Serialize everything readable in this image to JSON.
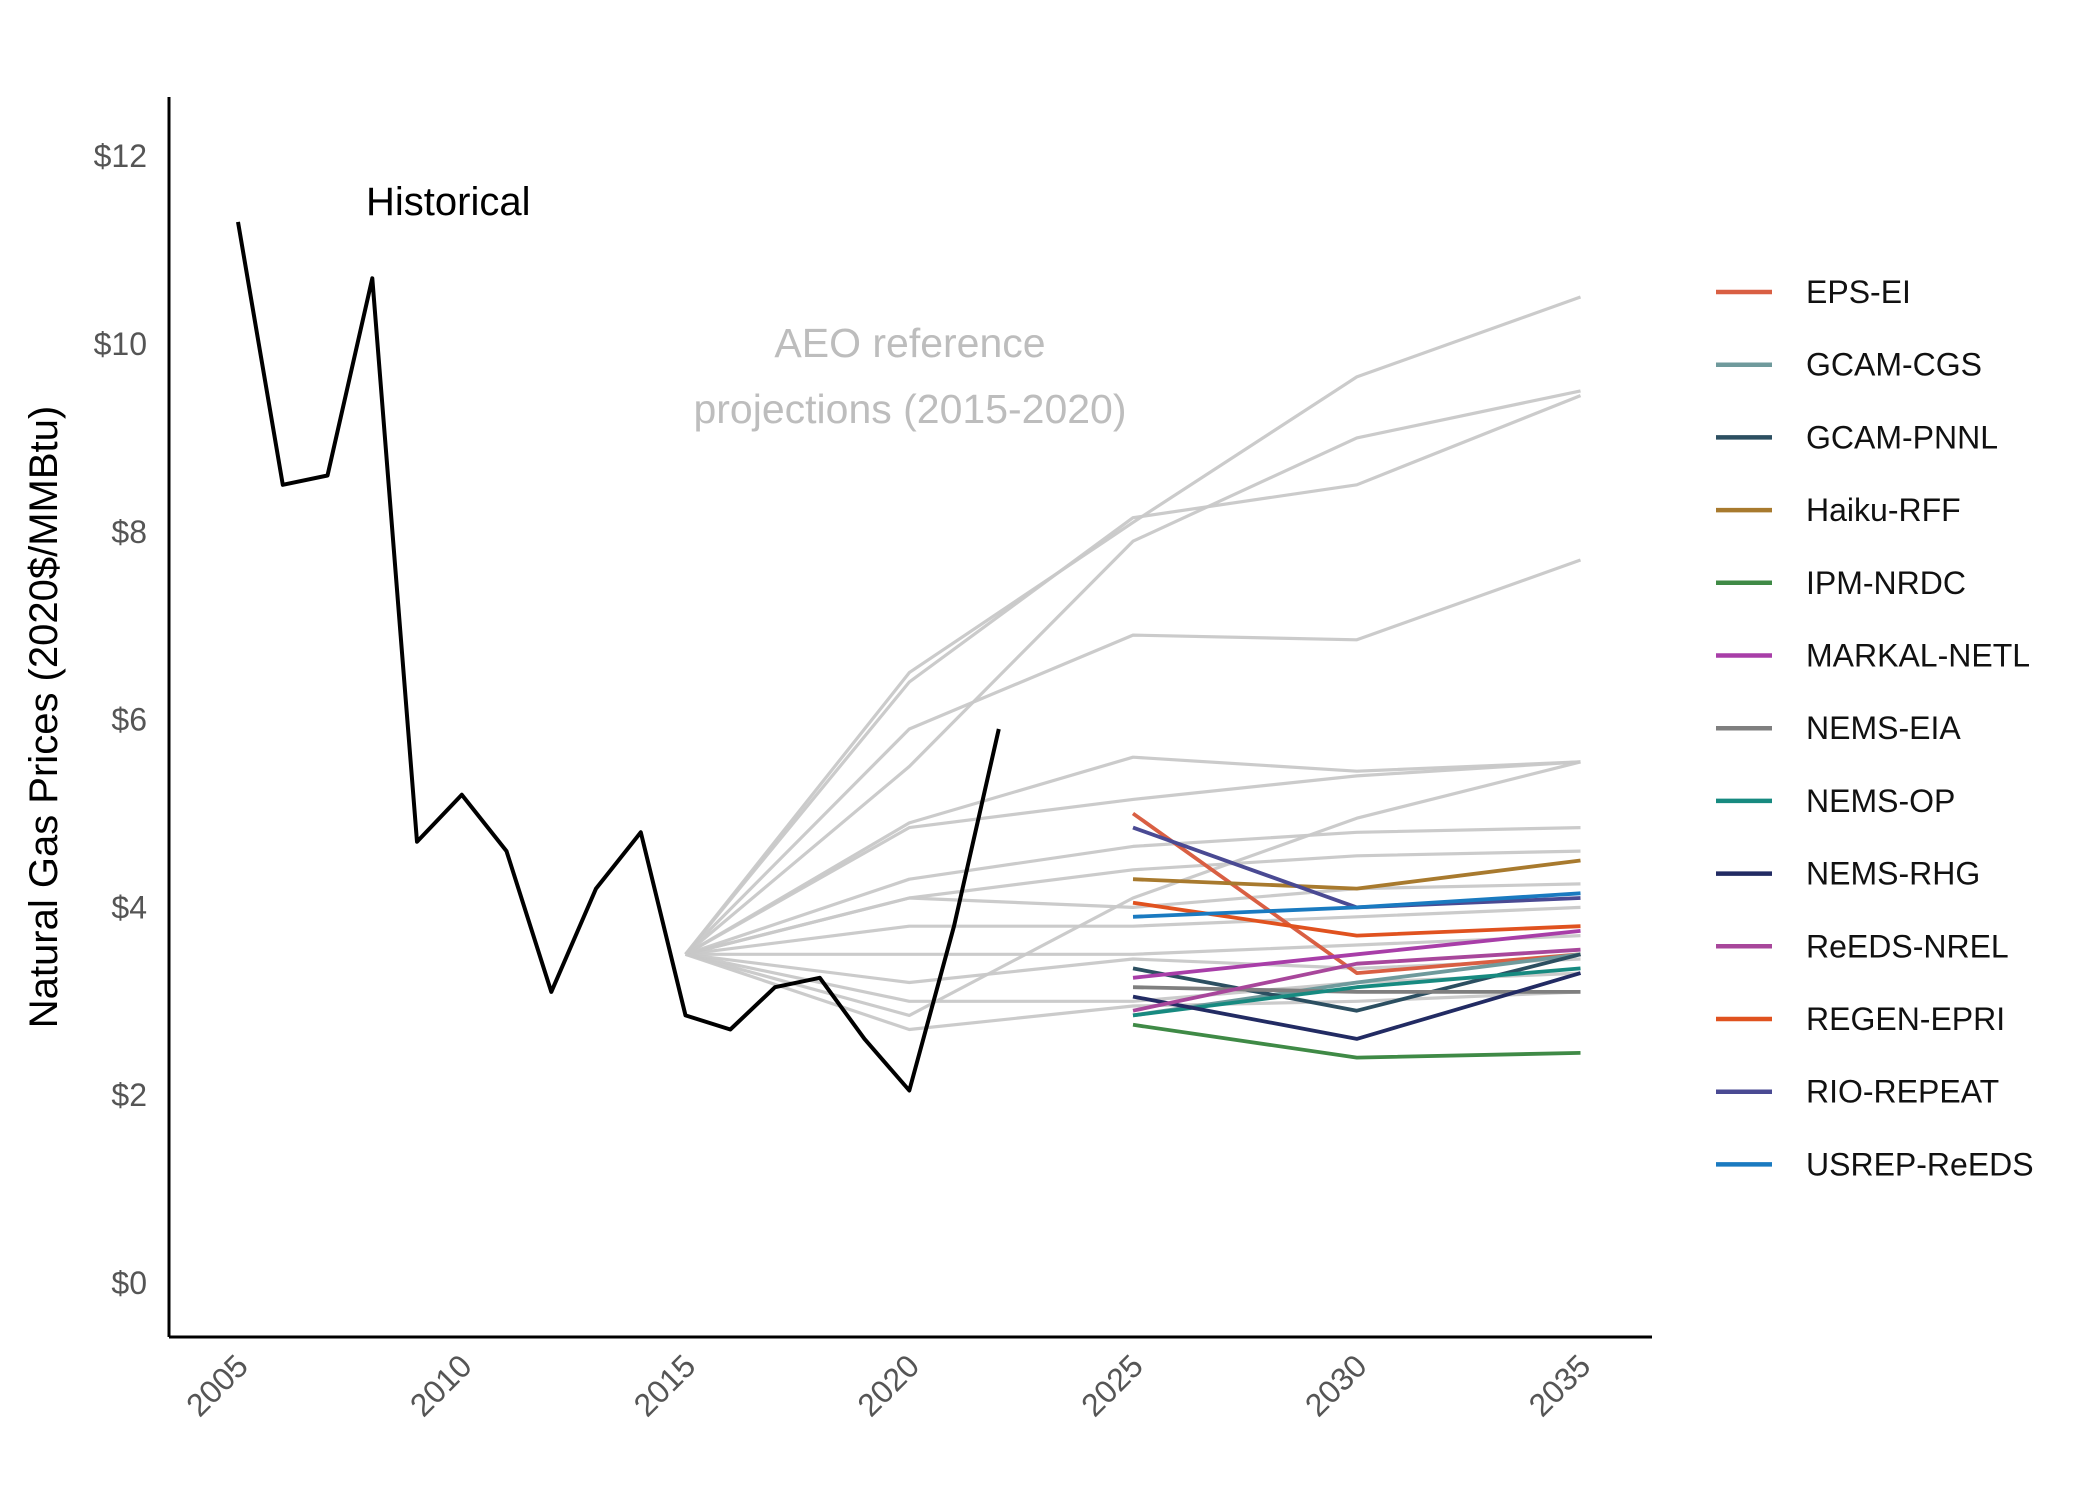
{
  "chart_data": {
    "type": "line",
    "title": "",
    "xlabel": "",
    "ylabel": "Natural Gas Prices (2020$/MMBtu)",
    "xlim": [
      2003.5,
      2036.5
    ],
    "ylim": [
      -0.6,
      12.6
    ],
    "x_ticks": [
      2005,
      2010,
      2015,
      2020,
      2025,
      2030,
      2035
    ],
    "x_tick_labels": [
      "2005",
      "2010",
      "2015",
      "2020",
      "2025",
      "2030",
      "2035"
    ],
    "y_ticks": [
      0,
      2,
      4,
      6,
      8,
      10,
      12
    ],
    "y_tick_labels": [
      "$0",
      "$2",
      "$4",
      "$6",
      "$8",
      "$10",
      "$12"
    ],
    "annotations": {
      "historical": "Historical",
      "aeo_line1": "AEO reference",
      "aeo_line2": "projections (2015-2020)"
    },
    "legend_position": "right",
    "historical": {
      "color": "#000000",
      "x": [
        2005,
        2006,
        2007,
        2008,
        2009,
        2010,
        2011,
        2012,
        2013,
        2014,
        2015,
        2016,
        2017,
        2018,
        2019,
        2020,
        2021,
        2022
      ],
      "values": [
        11.3,
        8.5,
        8.6,
        10.7,
        4.7,
        5.2,
        4.6,
        3.1,
        4.2,
        4.8,
        2.85,
        2.7,
        3.15,
        3.25,
        2.6,
        2.05,
        3.8,
        5.9
      ]
    },
    "aeo_projections": {
      "color": "#c8c8c8",
      "x": [
        2015,
        2020,
        2025,
        2030,
        2035
      ],
      "series": [
        [
          3.5,
          6.5,
          8.1,
          9.65,
          10.5
        ],
        [
          3.5,
          6.4,
          8.15,
          8.5,
          9.45
        ],
        [
          3.5,
          5.5,
          7.9,
          9.0,
          9.5
        ],
        [
          3.5,
          5.9,
          6.9,
          6.85,
          7.7
        ],
        [
          3.5,
          4.9,
          5.6,
          5.45,
          5.55
        ],
        [
          3.5,
          4.85,
          5.15,
          5.4,
          5.55
        ],
        [
          3.5,
          4.3,
          4.65,
          4.8,
          4.85
        ],
        [
          3.5,
          4.1,
          4.4,
          4.55,
          4.6
        ],
        [
          3.5,
          4.1,
          4.0,
          4.2,
          4.25
        ],
        [
          3.5,
          3.8,
          3.8,
          3.9,
          4.0
        ],
        [
          3.5,
          3.5,
          3.5,
          3.6,
          3.7
        ],
        [
          3.5,
          3.2,
          3.45,
          3.35,
          3.45
        ],
        [
          3.5,
          3.0,
          3.0,
          3.2,
          3.3
        ],
        [
          3.5,
          2.7,
          2.95,
          3.0,
          3.1
        ],
        [
          3.5,
          2.85,
          4.1,
          4.95,
          5.55
        ]
      ]
    },
    "models": {
      "x": [
        2025,
        2030,
        2035
      ],
      "series": [
        {
          "name": "EPS-EI",
          "color": "#d95f43",
          "values": [
            5.0,
            3.3,
            3.5
          ]
        },
        {
          "name": "GCAM-CGS",
          "color": "#6f9a9c",
          "values": [
            2.85,
            3.2,
            3.5
          ]
        },
        {
          "name": "GCAM-PNNL",
          "color": "#2c4f61",
          "values": [
            3.35,
            2.9,
            3.5
          ]
        },
        {
          "name": "Haiku-RFF",
          "color": "#a87a2e",
          "values": [
            4.3,
            4.2,
            4.5
          ]
        },
        {
          "name": "IPM-NRDC",
          "color": "#3f8a46",
          "values": [
            2.75,
            2.4,
            2.45
          ]
        },
        {
          "name": "MARKAL-NETL",
          "color": "#a83ea8",
          "values": [
            3.25,
            3.5,
            3.75
          ]
        },
        {
          "name": "NEMS-EIA",
          "color": "#7f7f7f",
          "values": [
            3.15,
            3.1,
            3.1
          ]
        },
        {
          "name": "NEMS-OP",
          "color": "#178a80",
          "values": [
            2.85,
            3.15,
            3.35
          ]
        },
        {
          "name": "NEMS-RHG",
          "color": "#222b63",
          "values": [
            3.05,
            2.6,
            3.3
          ]
        },
        {
          "name": "ReEDS-NREL",
          "color": "#a8479b",
          "values": [
            2.9,
            3.4,
            3.55
          ]
        },
        {
          "name": "REGEN-EPRI",
          "color": "#e0521f",
          "values": [
            4.05,
            3.7,
            3.8
          ]
        },
        {
          "name": "RIO-REPEAT",
          "color": "#4a4a93",
          "values": [
            4.85,
            4.0,
            4.1
          ]
        },
        {
          "name": "USREP-ReEDS",
          "color": "#1a7ac0",
          "values": [
            3.9,
            4.0,
            4.15
          ]
        }
      ]
    }
  }
}
